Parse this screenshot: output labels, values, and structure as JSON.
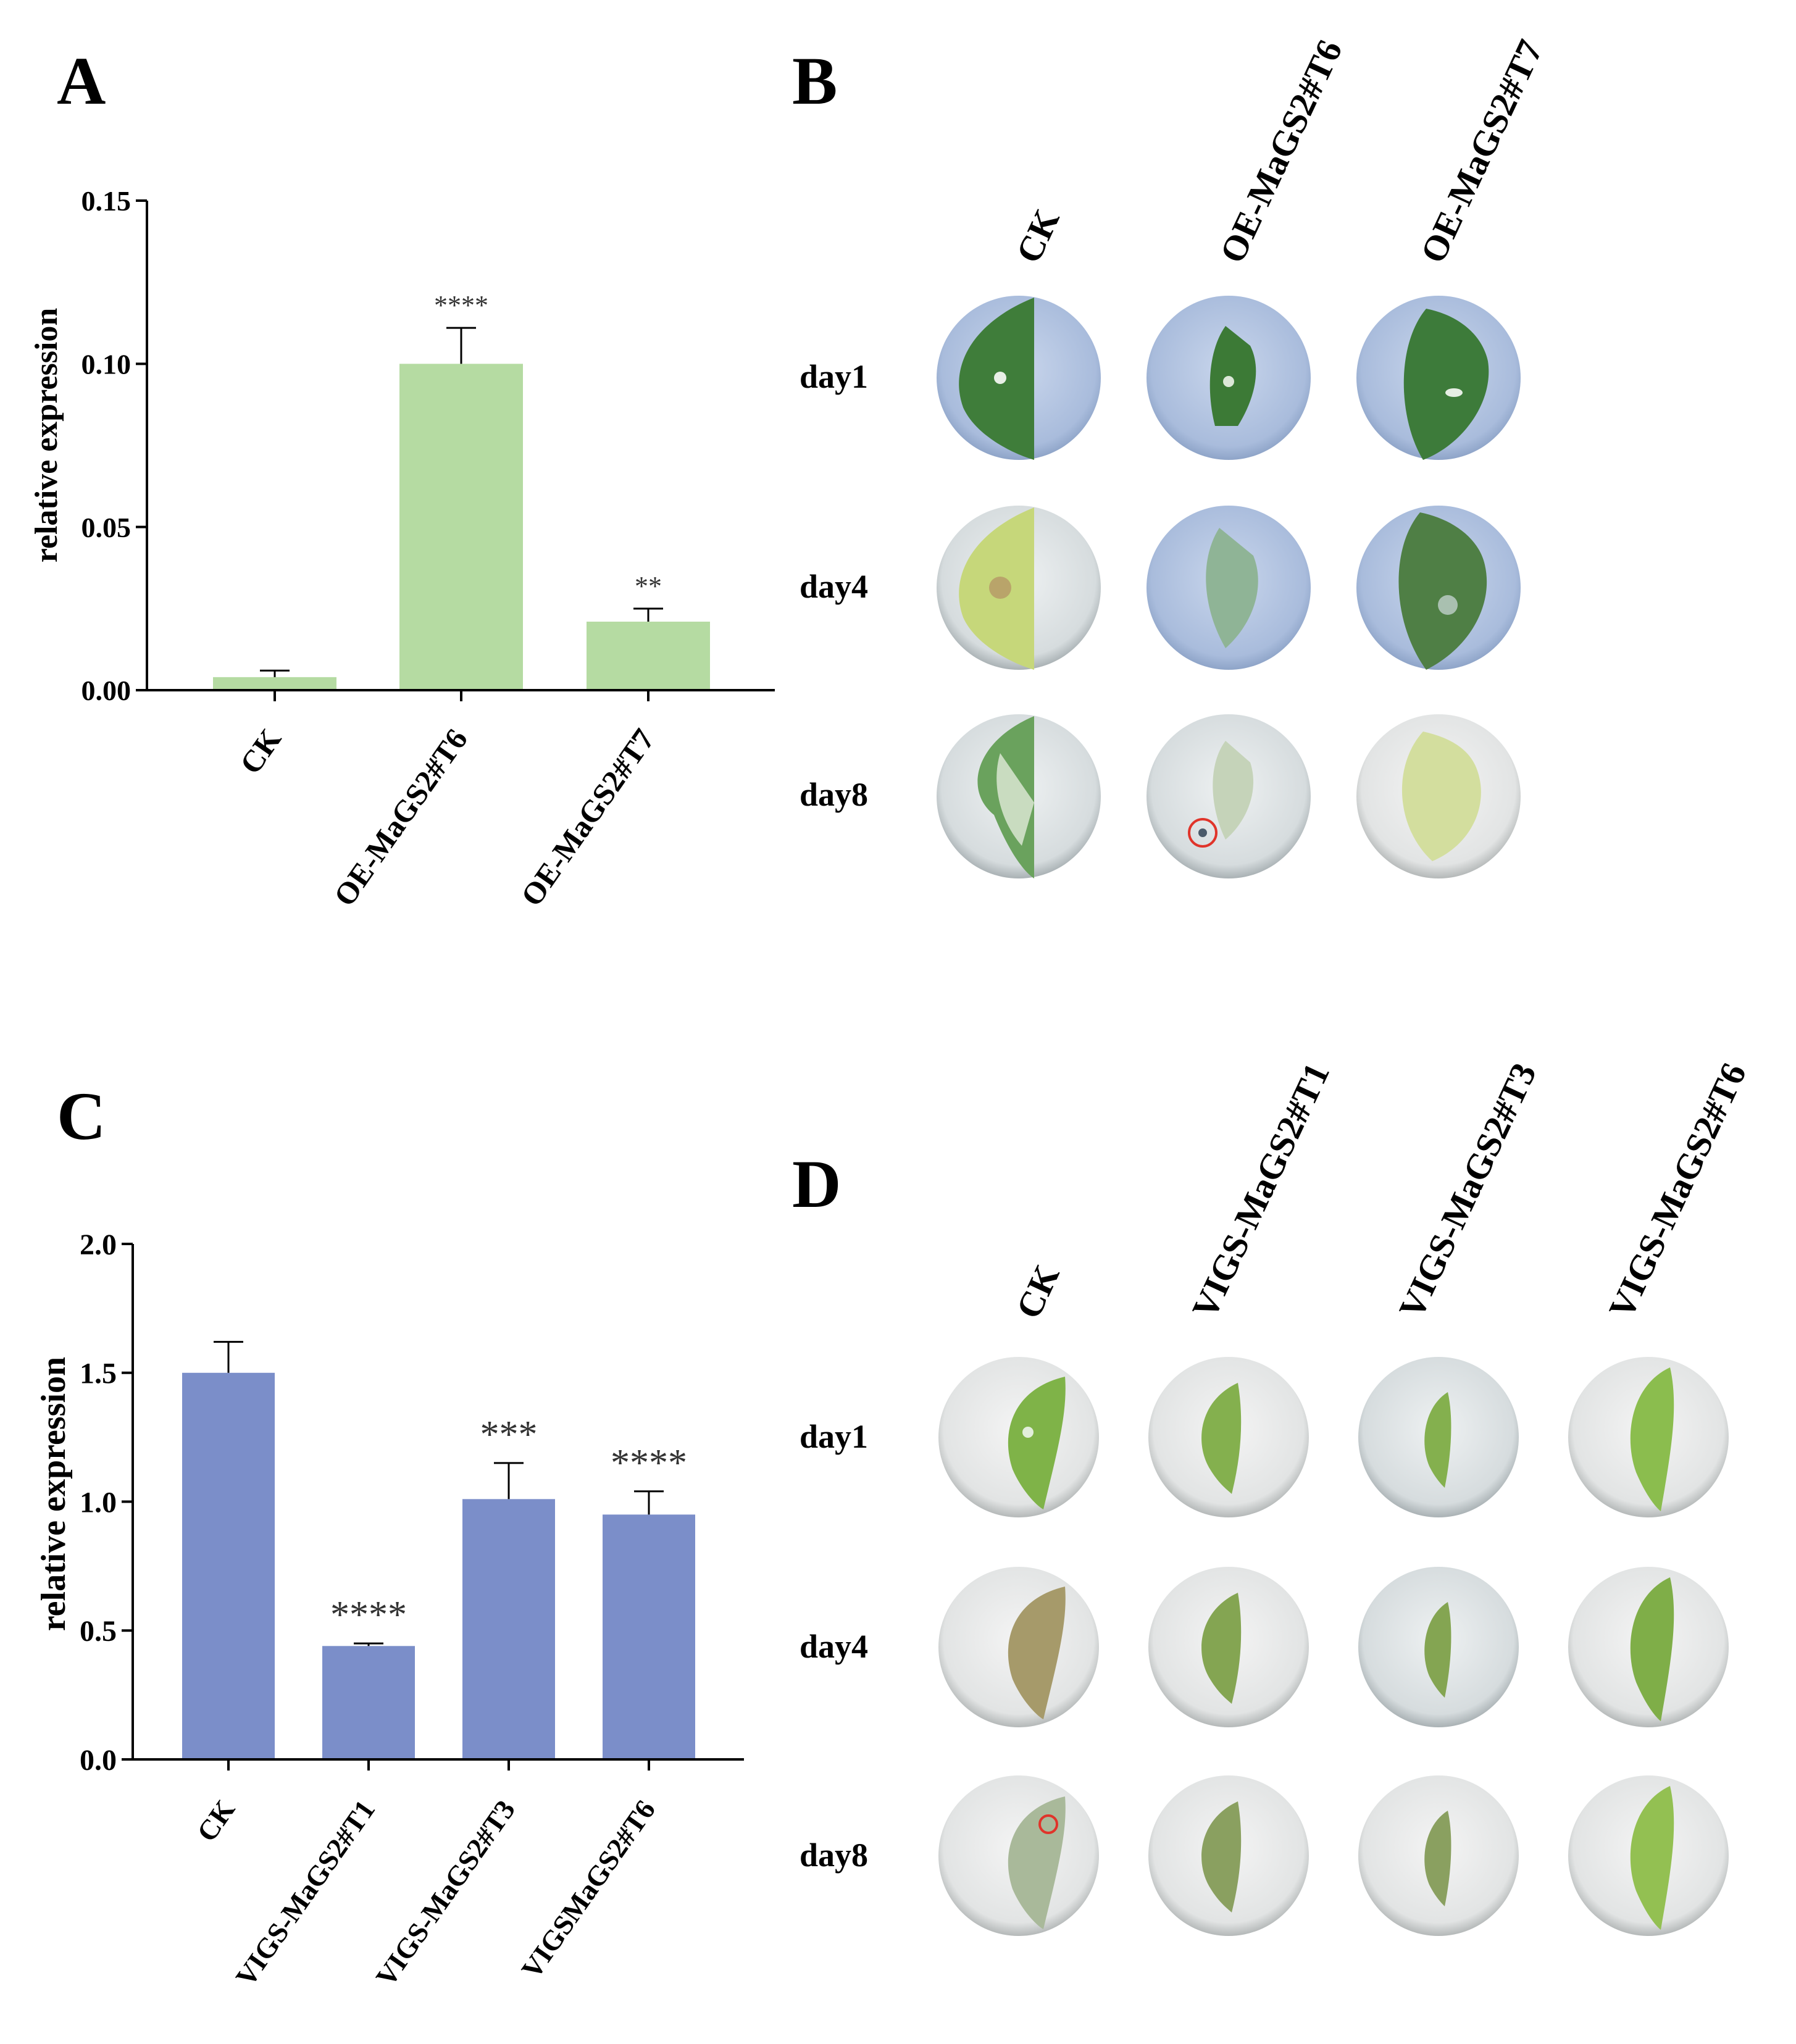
{
  "panels": {
    "a": "A",
    "b": "B",
    "c": "C",
    "d": "D"
  },
  "panel_b": {
    "columns": [
      "CK",
      "OE-MaGS2#T6",
      "OE-MaGS2#T7"
    ],
    "rows": [
      "day1",
      "day4",
      "day8"
    ]
  },
  "panel_d": {
    "columns": [
      "CK",
      "VIGS-MaGS2#T1",
      "VIGS-MaGS2#T3",
      "VIGS-MaGS2#T6"
    ],
    "rows": [
      "day1",
      "day4",
      "day8"
    ]
  },
  "colors": {
    "green_bar": "#b5dba2",
    "blue_bar": "#7b8ec9",
    "plate_blue": "#b6c7e3",
    "plate_grey": "#dde2e4"
  },
  "chart_data": [
    {
      "type": "bar",
      "panel": "A",
      "categories": [
        "CK",
        "OE-MaGS2#T6",
        "OE-MaGS2#T7"
      ],
      "values": [
        0.004,
        0.1,
        0.021
      ],
      "errors": [
        0.002,
        0.011,
        0.004
      ],
      "significance": [
        "",
        "****",
        "**"
      ],
      "ylabel": "relative expression",
      "ylim": [
        0,
        0.15
      ],
      "yticks": [
        "0.00",
        "0.05",
        "0.10",
        "0.15"
      ],
      "ytick_values": [
        0,
        0.05,
        0.1,
        0.15
      ]
    },
    {
      "type": "bar",
      "panel": "C",
      "categories": [
        "CK",
        "VIGS-MaGS2#T1",
        "VIGS-MaGS2#T3",
        "VIGSMaGS2#T6"
      ],
      "values": [
        1.5,
        0.44,
        1.01,
        0.95
      ],
      "errors": [
        0.12,
        0.01,
        0.14,
        0.09
      ],
      "significance": [
        "",
        "****",
        "***",
        "****"
      ],
      "ylabel": "relative expression",
      "ylim": [
        0,
        2.0
      ],
      "yticks": [
        "0.0",
        "0.5",
        "1.0",
        "1.5",
        "2.0"
      ],
      "ytick_values": [
        0,
        0.5,
        1.0,
        1.5,
        2.0
      ]
    }
  ]
}
